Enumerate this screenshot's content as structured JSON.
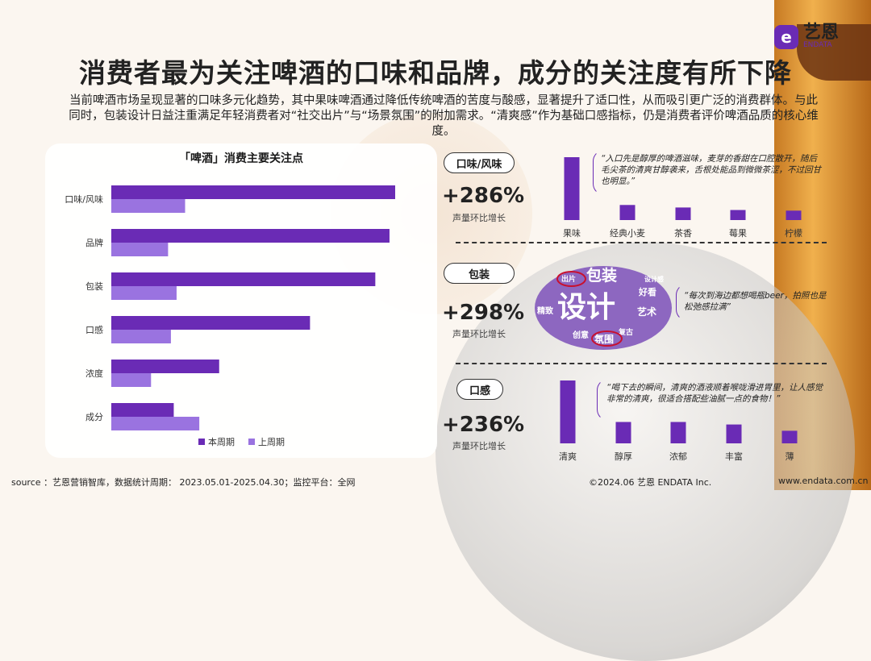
{
  "logo": {
    "text": "艺恩",
    "sub": "ENDATA"
  },
  "title": "消费者最为关注啤酒的口味和品牌，成分的关注度有所下降",
  "intro": "当前啤酒市场呈现显著的口味多元化趋势，其中果味啤酒通过降低传统啤酒的苦度与酸感，显著提升了适口性，从而吸引更广泛的消费群体。与此同时，包装设计日益注重满足年轻消费者对“社交出片”与“场景氛围”的附加需求。“清爽感”作为基础口感指标，仍是消费者评价啤酒品质的核心维度。",
  "colors": {
    "current": "#6a2bb5",
    "previous": "#9a73e0"
  },
  "chart_data": [
    {
      "type": "bar",
      "orientation": "horizontal",
      "title": "「啤酒」消费主要关注点",
      "categories": [
        "口味/风味",
        "品牌",
        "包装",
        "口感",
        "浓度",
        "成分"
      ],
      "series": [
        {
          "name": "本周期",
          "values": [
            100,
            98,
            93,
            70,
            38,
            22
          ]
        },
        {
          "name": "上周期",
          "values": [
            26,
            20,
            23,
            21,
            14,
            31
          ]
        }
      ],
      "xlim": [
        0,
        100
      ],
      "legend": "bottom"
    },
    {
      "type": "bar",
      "categories": [
        "果味",
        "经典小麦",
        "茶香",
        "莓果",
        "柠檬"
      ],
      "values": [
        100,
        24,
        20,
        16,
        15
      ]
    },
    {
      "type": "bar",
      "categories": [
        "清爽",
        "醇厚",
        "浓郁",
        "丰富",
        "薄"
      ],
      "values": [
        100,
        34,
        34,
        30,
        20
      ]
    }
  ],
  "sections": {
    "taste": {
      "label": "口味/风味",
      "growth": "+286%",
      "growth_label": "声量环比增长",
      "quote": "“入口先是醇厚的啤酒滋味，麦芽的香甜在口腔散开，随后毛尖茶的清爽甘醇袭来，舌根处能品到微微茶涩，不过回甘也明显。”"
    },
    "package": {
      "label": "包装",
      "growth": "+298%",
      "growth_label": "声量环比增长",
      "quote": "“每次到海边都想喝瓶beer，拍照也是松弛感拉满”",
      "cloud": [
        "包装",
        "设计",
        "出片",
        "设计感",
        "好看",
        "精致",
        "艺术",
        "创意",
        "氛围",
        "复古"
      ]
    },
    "mouthfeel": {
      "label": "口感",
      "growth": "+236%",
      "growth_label": "声量环比增长",
      "quote": "“喝下去的瞬间，清爽的酒液顺着喉咙滑进胃里，让人感觉非常的清爽，很适合搭配些油腻一点的食物！”"
    }
  },
  "footer": {
    "source": "source ：艺恩营销智库，数据统计周期： 2023.05.01-2025.04.30；监控平台：全网",
    "copyright": "©2024.06  艺恩 ENDATA Inc.",
    "url": "www.endata.com.cn"
  }
}
